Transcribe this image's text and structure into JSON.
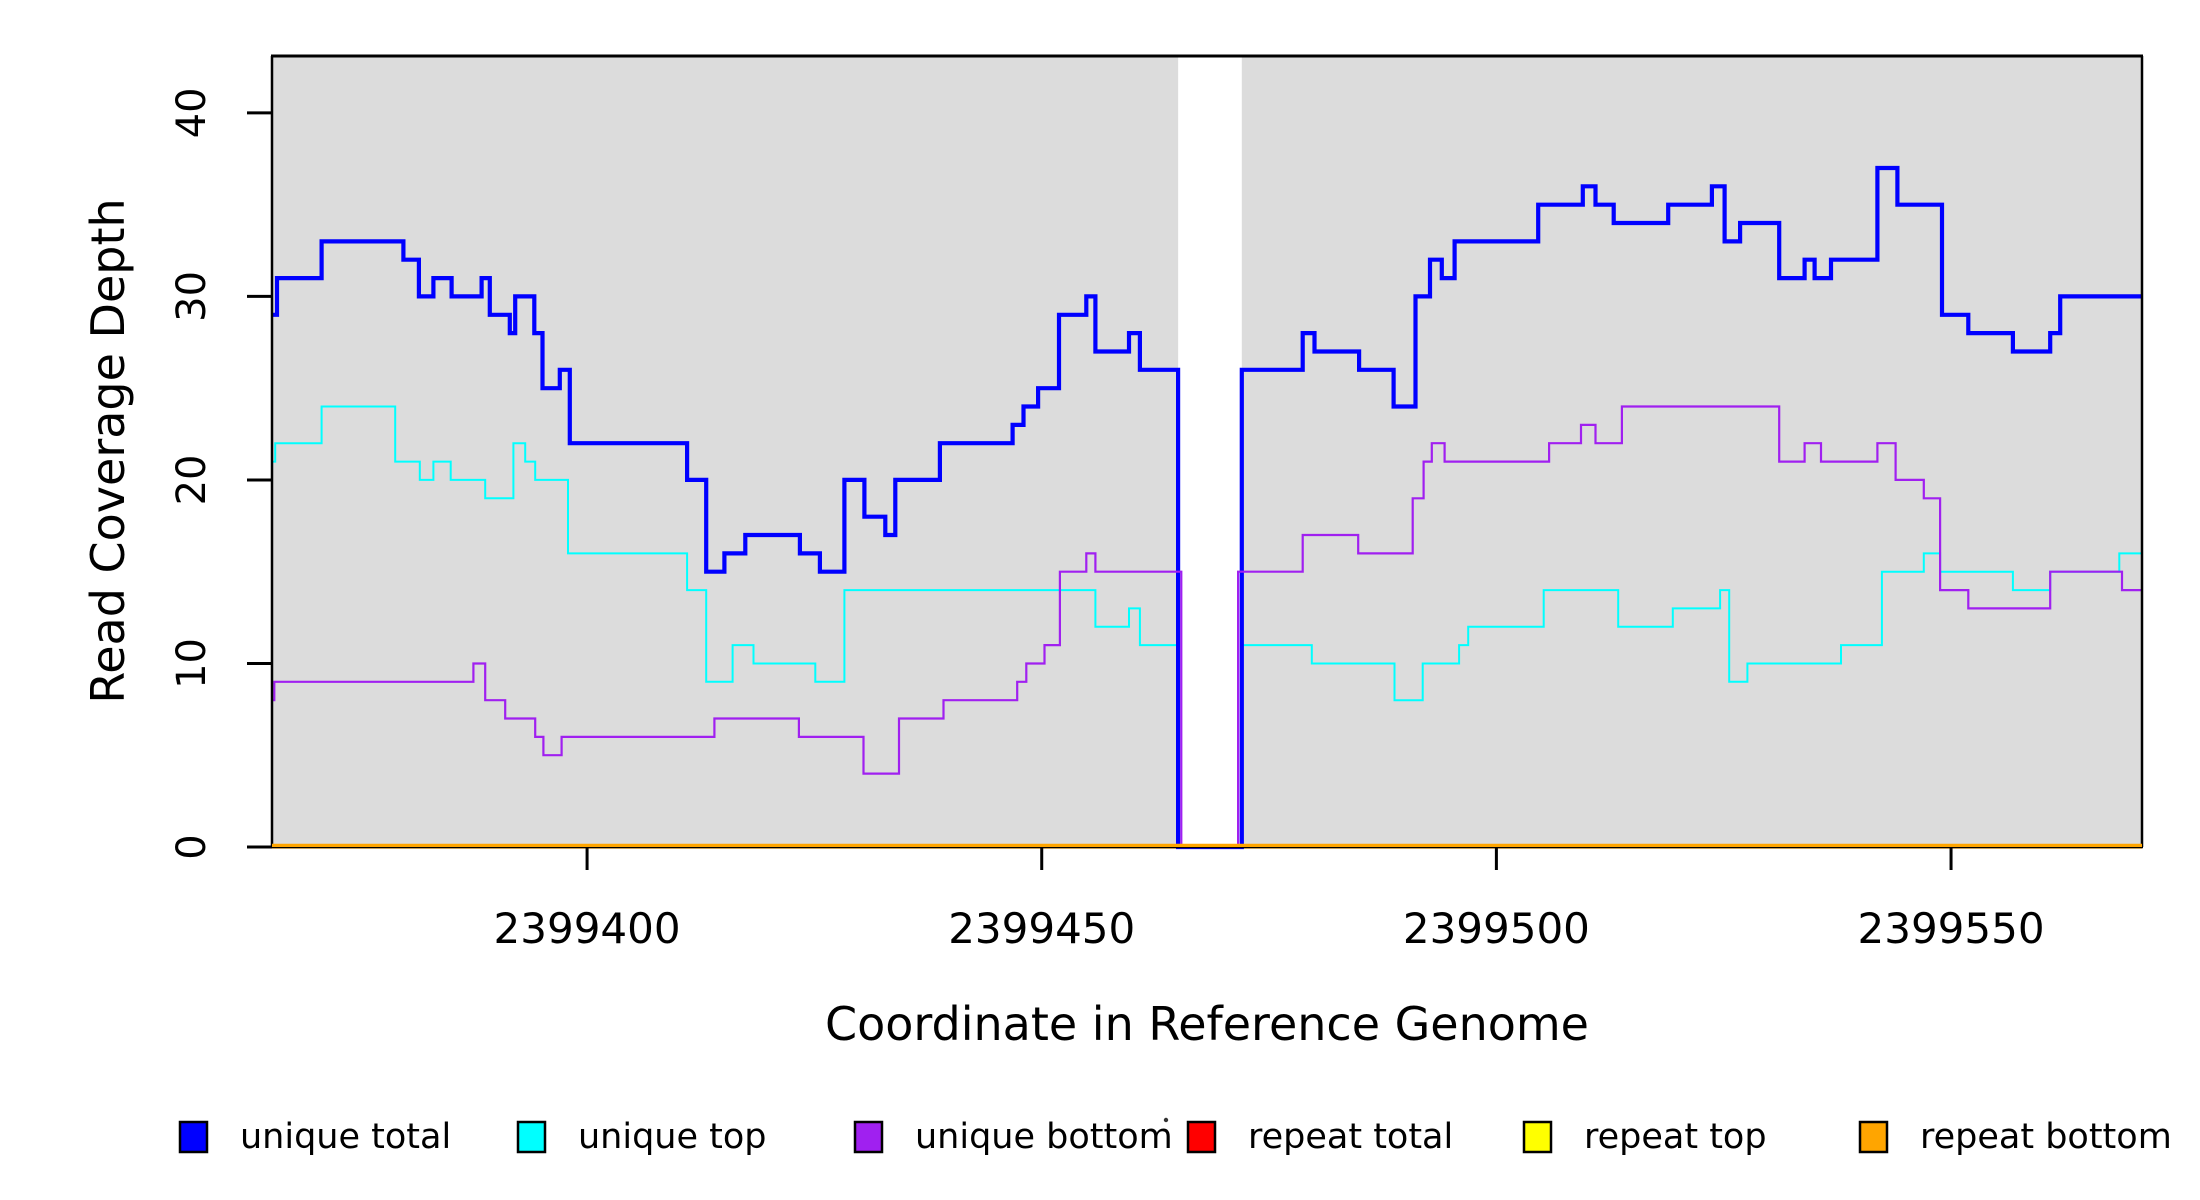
{
  "chart_data": {
    "type": "line",
    "step": true,
    "title": "",
    "xlabel": "Coordinate in Reference Genome",
    "ylabel": "Read Coverage Depth",
    "x_ticks": [
      2399400,
      2399450,
      2399500,
      2399550
    ],
    "x_tick_labels": [
      "2399400",
      "2399450",
      "2399500",
      "2399550"
    ],
    "y_ticks": [
      0,
      10,
      20,
      30,
      40
    ],
    "y_tick_labels": [
      "0",
      "10",
      "20",
      "30",
      "40"
    ],
    "xlim": [
      2399365.35,
      2399571.0
    ],
    "ylim": [
      0,
      43.1
    ],
    "grid": false,
    "plot_bg_color": "#DCDCDC",
    "page_bg_color": "#FFFFFF",
    "frame_color": "#000000",
    "gap_region": {
      "x_start": 2399465.0,
      "x_end": 2399472.0,
      "color": "#FFFFFF"
    },
    "legend_position": "bottom",
    "series": [
      {
        "name": "repeat total",
        "color": "#FF0000",
        "width": 2.0,
        "points": [
          [
            2399365.35,
            0
          ]
        ]
      },
      {
        "name": "repeat top",
        "color": "#FFFF00",
        "width": 2.0,
        "points": [
          [
            2399365.35,
            0
          ]
        ]
      },
      {
        "name": "repeat bottom",
        "color": "#FFA500",
        "width": 3.2,
        "points": [
          [
            2399365.35,
            0
          ]
        ]
      },
      {
        "name": "unique top",
        "color": "#00FFFF",
        "width": 2.0,
        "points": [
          [
            2399365.35,
            21
          ],
          [
            2399365.7,
            22
          ],
          [
            2399370.8,
            24
          ],
          [
            2399378.9,
            21
          ],
          [
            2399381.6,
            20
          ],
          [
            2399383.1,
            21
          ],
          [
            2399385.0,
            20
          ],
          [
            2399388.8,
            19
          ],
          [
            2399391.9,
            22
          ],
          [
            2399393.2,
            21
          ],
          [
            2399394.3,
            20
          ],
          [
            2399397.9,
            16
          ],
          [
            2399411.0,
            14
          ],
          [
            2399413.1,
            9
          ],
          [
            2399416.0,
            11
          ],
          [
            2399418.3,
            10
          ],
          [
            2399425.1,
            9
          ],
          [
            2399428.3,
            14
          ],
          [
            2399455.9,
            12
          ],
          [
            2399459.6,
            13
          ],
          [
            2399460.8,
            11
          ],
          [
            2399465.0,
            0
          ],
          [
            2399472.0,
            11
          ],
          [
            2399479.7,
            10
          ],
          [
            2399488.8,
            8
          ],
          [
            2399491.9,
            10
          ],
          [
            2399495.9,
            11
          ],
          [
            2399496.9,
            12
          ],
          [
            2399505.2,
            14
          ],
          [
            2399513.4,
            12
          ],
          [
            2399519.4,
            13
          ],
          [
            2399524.6,
            14
          ],
          [
            2399525.6,
            9
          ],
          [
            2399527.6,
            10
          ],
          [
            2399537.9,
            11
          ],
          [
            2399542.4,
            15
          ],
          [
            2399547.0,
            16
          ],
          [
            2399548.8,
            15
          ],
          [
            2399556.8,
            14
          ],
          [
            2399560.9,
            15
          ],
          [
            2399568.5,
            16
          ]
        ]
      },
      {
        "name": "unique total",
        "color": "#0000FF",
        "width": 4.2,
        "points": [
          [
            2399365.35,
            29
          ],
          [
            2399365.9,
            31
          ],
          [
            2399370.8,
            33
          ],
          [
            2399379.8,
            32
          ],
          [
            2399381.5,
            30
          ],
          [
            2399383.1,
            31
          ],
          [
            2399385.1,
            30
          ],
          [
            2399388.4,
            31
          ],
          [
            2399389.3,
            29
          ],
          [
            2399391.5,
            28
          ],
          [
            2399392.1,
            30
          ],
          [
            2399394.2,
            28
          ],
          [
            2399395.1,
            25
          ],
          [
            2399397.0,
            26
          ],
          [
            2399398.1,
            22
          ],
          [
            2399411.0,
            20
          ],
          [
            2399413.1,
            15
          ],
          [
            2399415.1,
            16
          ],
          [
            2399417.4,
            17
          ],
          [
            2399423.4,
            16
          ],
          [
            2399425.6,
            15
          ],
          [
            2399428.3,
            20
          ],
          [
            2399430.5,
            18
          ],
          [
            2399432.8,
            17
          ],
          [
            2399433.9,
            20
          ],
          [
            2399438.8,
            22
          ],
          [
            2399446.8,
            23
          ],
          [
            2399448.0,
            24
          ],
          [
            2399449.6,
            25
          ],
          [
            2399451.9,
            29
          ],
          [
            2399454.9,
            30
          ],
          [
            2399455.9,
            27
          ],
          [
            2399459.6,
            28
          ],
          [
            2399460.8,
            26
          ],
          [
            2399465.0,
            0
          ],
          [
            2399472.0,
            26
          ],
          [
            2399478.7,
            28
          ],
          [
            2399480.0,
            27
          ],
          [
            2399484.9,
            26
          ],
          [
            2399488.7,
            24
          ],
          [
            2399491.1,
            30
          ],
          [
            2399492.7,
            32
          ],
          [
            2399494.0,
            31
          ],
          [
            2399495.4,
            33
          ],
          [
            2399504.6,
            35
          ],
          [
            2399509.5,
            36
          ],
          [
            2399510.9,
            35
          ],
          [
            2399512.9,
            34
          ],
          [
            2399518.9,
            35
          ],
          [
            2399523.7,
            36
          ],
          [
            2399525.1,
            33
          ],
          [
            2399526.8,
            34
          ],
          [
            2399531.1,
            31
          ],
          [
            2399533.9,
            32
          ],
          [
            2399535.0,
            31
          ],
          [
            2399536.8,
            32
          ],
          [
            2399541.9,
            37
          ],
          [
            2399544.1,
            35
          ],
          [
            2399549.0,
            29
          ],
          [
            2399551.9,
            28
          ],
          [
            2399556.8,
            27
          ],
          [
            2399560.9,
            28
          ],
          [
            2399562.0,
            30
          ]
        ]
      },
      {
        "name": "unique bottom",
        "color": "#A020F0",
        "width": 2.2,
        "points": [
          [
            2399365.35,
            8
          ],
          [
            2399365.6,
            9
          ],
          [
            2399387.5,
            10
          ],
          [
            2399388.8,
            8
          ],
          [
            2399391.0,
            7
          ],
          [
            2399394.3,
            6
          ],
          [
            2399395.2,
            5
          ],
          [
            2399397.2,
            6
          ],
          [
            2399414.0,
            7
          ],
          [
            2399423.3,
            6
          ],
          [
            2399430.4,
            4
          ],
          [
            2399434.3,
            7
          ],
          [
            2399439.2,
            8
          ],
          [
            2399447.3,
            9
          ],
          [
            2399448.3,
            10
          ],
          [
            2399450.3,
            11
          ],
          [
            2399452.0,
            15
          ],
          [
            2399454.9,
            16
          ],
          [
            2399455.9,
            15
          ],
          [
            2399465.35,
            0
          ],
          [
            2399471.6,
            15
          ],
          [
            2399478.7,
            17
          ],
          [
            2399484.8,
            16
          ],
          [
            2399490.8,
            19
          ],
          [
            2399492.0,
            21
          ],
          [
            2399492.9,
            22
          ],
          [
            2399494.3,
            21
          ],
          [
            2399505.8,
            22
          ],
          [
            2399509.3,
            23
          ],
          [
            2399510.9,
            22
          ],
          [
            2399513.8,
            24
          ],
          [
            2399531.1,
            21
          ],
          [
            2399533.9,
            22
          ],
          [
            2399535.7,
            21
          ],
          [
            2399541.9,
            22
          ],
          [
            2399543.9,
            20
          ],
          [
            2399547.0,
            19
          ],
          [
            2399548.8,
            14
          ],
          [
            2399551.9,
            13
          ],
          [
            2399560.9,
            15
          ],
          [
            2399568.8,
            14
          ]
        ]
      }
    ]
  },
  "legend": {
    "items": [
      {
        "label": "unique total",
        "color": "#0000FF"
      },
      {
        "label": "unique top",
        "color": "#00FFFF"
      },
      {
        "label": "unique bottom",
        "color": "#A020F0"
      },
      {
        "label": "repeat total",
        "color": "#FF0000"
      },
      {
        "label": "repeat top",
        "color": "#FFFF00"
      },
      {
        "label": "repeat bottom",
        "color": "#FFA500"
      }
    ],
    "swatch_border_color": "#000000"
  },
  "stray_mark": {
    "color": "#333333"
  }
}
